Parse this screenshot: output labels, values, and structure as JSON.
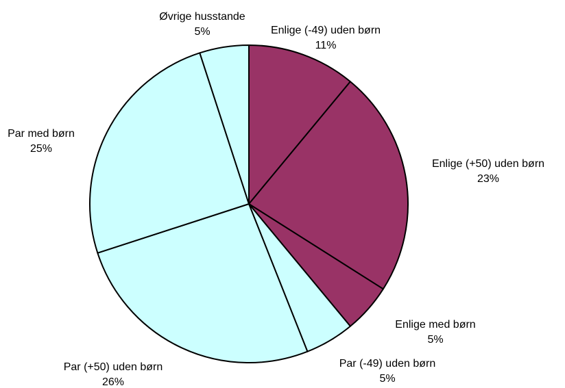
{
  "chart_data": {
    "type": "pie",
    "categories": [
      "Enlige (-49) uden børn",
      "Enlige (+50) uden børn",
      "Enlige med børn",
      "Par (-49) uden børn",
      "Par (+50) uden børn",
      "Par med børn",
      "Øvrige husstande"
    ],
    "values": [
      11,
      23,
      5,
      5,
      26,
      25,
      5
    ],
    "value_labels": [
      "11%",
      "23%",
      "5%",
      "5%",
      "26%",
      "25%",
      "5%"
    ],
    "colors": [
      "#993366",
      "#993366",
      "#993366",
      "#ccffff",
      "#ccffff",
      "#ccffff",
      "#ccffff"
    ]
  }
}
